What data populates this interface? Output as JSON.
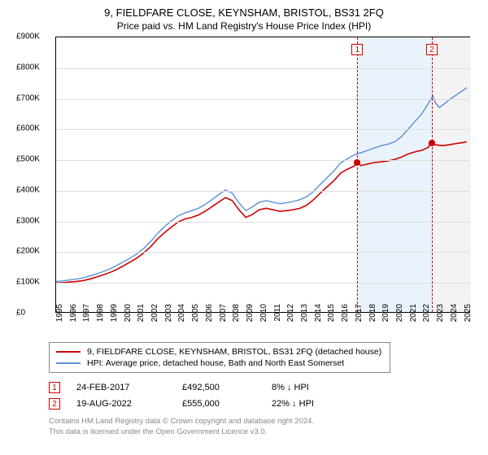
{
  "title": "9, FIELDFARE CLOSE, KEYNSHAM, BRISTOL, BS31 2FQ",
  "subtitle": "Price paid vs. HM Land Registry's House Price Index (HPI)",
  "chart": {
    "type": "line",
    "background_color": "#ffffff",
    "grid_color": "#dddddd",
    "axis_color": "#000000",
    "label_fontsize": 10,
    "xlim": [
      1995,
      2025.5
    ],
    "ylim": [
      0,
      900000
    ],
    "ytick_step": 100000,
    "yticks": [
      "£0",
      "£100K",
      "£200K",
      "£300K",
      "£400K",
      "£500K",
      "£600K",
      "£700K",
      "£800K",
      "£900K"
    ],
    "xticks": [
      "1995",
      "1996",
      "1997",
      "1998",
      "1999",
      "2000",
      "2001",
      "2002",
      "2003",
      "2004",
      "2005",
      "2006",
      "2007",
      "2008",
      "2009",
      "2010",
      "2011",
      "2012",
      "2013",
      "2014",
      "2015",
      "2016",
      "2017",
      "2018",
      "2019",
      "2020",
      "2021",
      "2022",
      "2023",
      "2024",
      "2025"
    ],
    "series": [
      {
        "name": "property_price",
        "color": "#cc0000",
        "width": 1.6,
        "points": [
          [
            1995.0,
            95000
          ],
          [
            1995.5,
            96000
          ],
          [
            1996.0,
            98000
          ],
          [
            1996.5,
            100000
          ],
          [
            1997.0,
            103000
          ],
          [
            1997.5,
            108000
          ],
          [
            1998.0,
            115000
          ],
          [
            1998.5,
            122000
          ],
          [
            1999.0,
            130000
          ],
          [
            1999.5,
            140000
          ],
          [
            2000.0,
            152000
          ],
          [
            2000.5,
            165000
          ],
          [
            2001.0,
            178000
          ],
          [
            2001.5,
            195000
          ],
          [
            2002.0,
            215000
          ],
          [
            2002.5,
            240000
          ],
          [
            2003.0,
            260000
          ],
          [
            2003.5,
            278000
          ],
          [
            2004.0,
            295000
          ],
          [
            2004.5,
            305000
          ],
          [
            2005.0,
            310000
          ],
          [
            2005.5,
            318000
          ],
          [
            2006.0,
            330000
          ],
          [
            2006.5,
            345000
          ],
          [
            2007.0,
            360000
          ],
          [
            2007.5,
            375000
          ],
          [
            2008.0,
            365000
          ],
          [
            2008.5,
            335000
          ],
          [
            2009.0,
            310000
          ],
          [
            2009.5,
            320000
          ],
          [
            2010.0,
            335000
          ],
          [
            2010.5,
            340000
          ],
          [
            2011.0,
            335000
          ],
          [
            2011.5,
            330000
          ],
          [
            2012.0,
            332000
          ],
          [
            2012.5,
            335000
          ],
          [
            2013.0,
            340000
          ],
          [
            2013.5,
            350000
          ],
          [
            2014.0,
            368000
          ],
          [
            2014.5,
            390000
          ],
          [
            2015.0,
            410000
          ],
          [
            2015.5,
            430000
          ],
          [
            2016.0,
            455000
          ],
          [
            2016.5,
            468000
          ],
          [
            2017.0,
            478000
          ],
          [
            2017.2,
            492500
          ],
          [
            2017.5,
            480000
          ],
          [
            2018.0,
            485000
          ],
          [
            2018.5,
            490000
          ],
          [
            2019.0,
            492000
          ],
          [
            2019.5,
            495000
          ],
          [
            2020.0,
            500000
          ],
          [
            2020.5,
            508000
          ],
          [
            2021.0,
            518000
          ],
          [
            2021.5,
            525000
          ],
          [
            2022.0,
            530000
          ],
          [
            2022.5,
            540000
          ],
          [
            2022.6,
            555000
          ],
          [
            2023.0,
            548000
          ],
          [
            2023.5,
            545000
          ],
          [
            2024.0,
            548000
          ],
          [
            2024.5,
            552000
          ],
          [
            2025.0,
            555000
          ],
          [
            2025.3,
            558000
          ]
        ]
      },
      {
        "name": "hpi_avg",
        "color": "#5b8fd6",
        "width": 1.4,
        "points": [
          [
            1995.0,
            100000
          ],
          [
            1995.5,
            102000
          ],
          [
            1996.0,
            105000
          ],
          [
            1996.5,
            108000
          ],
          [
            1997.0,
            112000
          ],
          [
            1997.5,
            118000
          ],
          [
            1998.0,
            125000
          ],
          [
            1998.5,
            133000
          ],
          [
            1999.0,
            142000
          ],
          [
            1999.5,
            153000
          ],
          [
            2000.0,
            165000
          ],
          [
            2000.5,
            178000
          ],
          [
            2001.0,
            192000
          ],
          [
            2001.5,
            210000
          ],
          [
            2002.0,
            232000
          ],
          [
            2002.5,
            258000
          ],
          [
            2003.0,
            280000
          ],
          [
            2003.5,
            298000
          ],
          [
            2004.0,
            315000
          ],
          [
            2004.5,
            325000
          ],
          [
            2005.0,
            332000
          ],
          [
            2005.5,
            340000
          ],
          [
            2006.0,
            352000
          ],
          [
            2006.5,
            368000
          ],
          [
            2007.0,
            385000
          ],
          [
            2007.5,
            400000
          ],
          [
            2008.0,
            390000
          ],
          [
            2008.5,
            358000
          ],
          [
            2009.0,
            332000
          ],
          [
            2009.5,
            345000
          ],
          [
            2010.0,
            360000
          ],
          [
            2010.5,
            365000
          ],
          [
            2011.0,
            360000
          ],
          [
            2011.5,
            355000
          ],
          [
            2012.0,
            358000
          ],
          [
            2012.5,
            362000
          ],
          [
            2013.0,
            368000
          ],
          [
            2013.5,
            378000
          ],
          [
            2014.0,
            395000
          ],
          [
            2014.5,
            418000
          ],
          [
            2015.0,
            440000
          ],
          [
            2015.5,
            462000
          ],
          [
            2016.0,
            488000
          ],
          [
            2016.5,
            502000
          ],
          [
            2017.0,
            515000
          ],
          [
            2017.5,
            522000
          ],
          [
            2018.0,
            530000
          ],
          [
            2018.5,
            538000
          ],
          [
            2019.0,
            545000
          ],
          [
            2019.5,
            550000
          ],
          [
            2020.0,
            558000
          ],
          [
            2020.5,
            575000
          ],
          [
            2021.0,
            600000
          ],
          [
            2021.5,
            625000
          ],
          [
            2022.0,
            650000
          ],
          [
            2022.5,
            685000
          ],
          [
            2022.8,
            708000
          ],
          [
            2023.0,
            685000
          ],
          [
            2023.3,
            670000
          ],
          [
            2023.6,
            680000
          ],
          [
            2024.0,
            695000
          ],
          [
            2024.5,
            710000
          ],
          [
            2025.0,
            725000
          ],
          [
            2025.3,
            735000
          ]
        ]
      }
    ],
    "markers": [
      {
        "label": "1",
        "x": 2017.15,
        "y": 492500,
        "color": "#cc0000"
      },
      {
        "label": "2",
        "x": 2022.63,
        "y": 555000,
        "color": "#cc0000"
      }
    ],
    "bands": [
      {
        "from": 2017.15,
        "to": 2022.63,
        "color": "#eaf2fb"
      },
      {
        "from": 2022.63,
        "to": 2025.5,
        "color": "#f3f3f3"
      }
    ]
  },
  "legend": {
    "items": [
      {
        "color": "#cc0000",
        "label": "9, FIELDFARE CLOSE, KEYNSHAM, BRISTOL, BS31 2FQ (detached house)"
      },
      {
        "color": "#5b8fd6",
        "label": "HPI: Average price, detached house, Bath and North East Somerset"
      }
    ]
  },
  "sales": [
    {
      "flag": "1",
      "flag_color": "#cc0000",
      "date": "24-FEB-2017",
      "price": "£492,500",
      "delta": "8% ↓ HPI"
    },
    {
      "flag": "2",
      "flag_color": "#cc0000",
      "date": "19-AUG-2022",
      "price": "£555,000",
      "delta": "22% ↓ HPI"
    }
  ],
  "footnote": {
    "line1": "Contains HM Land Registry data © Crown copyright and database right 2024.",
    "line2": "This data is licensed under the Open Government Licence v3.0."
  }
}
